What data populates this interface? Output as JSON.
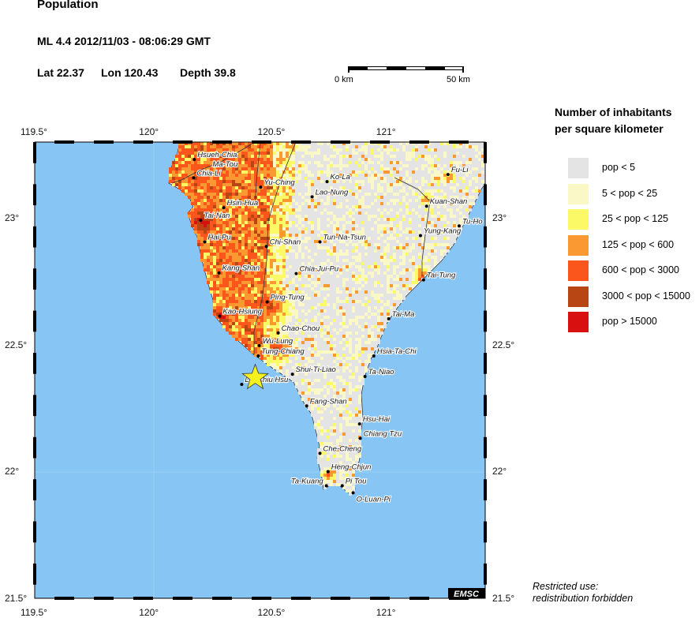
{
  "header": {
    "title": "Population",
    "event_line": "ML 4.4  2012/11/03 - 08:06:29 GMT",
    "lat_label": "Lat 22.37",
    "lon_label": "Lon 120.43",
    "depth_label": "Depth  39.8"
  },
  "scale_bar": {
    "start_label": "0 km",
    "end_label": "50 km"
  },
  "map": {
    "lon_range": [
      119.5,
      121.4
    ],
    "lat_range": [
      21.5,
      23.3
    ],
    "lon_ticks": [
      "119.5°",
      "120°",
      "120.5°",
      "121°"
    ],
    "lon_tick_values": [
      119.5,
      120,
      120.5,
      121
    ],
    "lat_ticks": [
      "23°",
      "22.5°",
      "22°",
      "21.5°"
    ],
    "lat_tick_values": [
      23,
      22.5,
      22,
      21.5
    ],
    "sea_color": "#87c5f5",
    "land_color": "#ffffff",
    "epicenter": {
      "lon": 120.43,
      "lat": 22.37,
      "icon": "star-icon",
      "color": "#f5f020"
    },
    "cities": [
      {
        "name": "Hsueh-Chia",
        "lon": 120.173,
        "lat": 23.231
      },
      {
        "name": "Ma-Tou",
        "lon": 120.25,
        "lat": 23.2,
        "dot": false
      },
      {
        "name": "Chia-Li",
        "lon": 120.17,
        "lat": 23.159
      },
      {
        "name": "Yu-Ching",
        "lon": 120.453,
        "lat": 23.122
      },
      {
        "name": "Ko-La",
        "lon": 120.733,
        "lat": 23.144
      },
      {
        "name": "Lao-Nung",
        "lon": 120.67,
        "lat": 23.084
      },
      {
        "name": "Hsin-Hua",
        "lon": 120.297,
        "lat": 23.041
      },
      {
        "name": "Tai-Nan",
        "lon": 120.2,
        "lat": 22.991
      },
      {
        "name": "Hai-Pu",
        "lon": 120.217,
        "lat": 22.906
      },
      {
        "name": "Tun-Na-Tsun",
        "lon": 120.703,
        "lat": 22.906
      },
      {
        "name": "Chi-Shan",
        "lon": 120.477,
        "lat": 22.888
      },
      {
        "name": "Chia-Jui-Pu",
        "lon": 120.603,
        "lat": 22.781
      },
      {
        "name": "Kang-Shan",
        "lon": 120.277,
        "lat": 22.784
      },
      {
        "name": "Ping-Tung",
        "lon": 120.48,
        "lat": 22.669
      },
      {
        "name": "Kao-Hsiung",
        "lon": 120.28,
        "lat": 22.613
      },
      {
        "name": "Chao-Chou",
        "lon": 120.527,
        "lat": 22.547
      },
      {
        "name": "Wu-Lung",
        "lon": 120.447,
        "lat": 22.497
      },
      {
        "name": "Tung-Chiang",
        "lon": 120.443,
        "lat": 22.456
      },
      {
        "name": "Shui-Ti-Liao",
        "lon": 120.587,
        "lat": 22.384
      },
      {
        "name": "Liu-Chiu Hsu",
        "lon": 120.373,
        "lat": 22.344
      },
      {
        "name": "Fang-Shan",
        "lon": 120.647,
        "lat": 22.259
      },
      {
        "name": "Hsu-Hai",
        "lon": 120.87,
        "lat": 22.188
      },
      {
        "name": "Chiang Tzu",
        "lon": 120.873,
        "lat": 22.131
      },
      {
        "name": "Che-Cheng",
        "lon": 120.703,
        "lat": 22.072
      },
      {
        "name": "Heng-Chjun",
        "lon": 120.737,
        "lat": 22.0
      },
      {
        "name": "Ta-Kuang",
        "lon": 120.73,
        "lat": 21.944
      },
      {
        "name": "Pi Tou",
        "lon": 120.797,
        "lat": 21.944
      },
      {
        "name": "O-Luan-Pi",
        "lon": 120.843,
        "lat": 21.916
      },
      {
        "name": "Tai-Ma",
        "lon": 120.993,
        "lat": 22.603
      },
      {
        "name": "Hsia-Ta-Chi",
        "lon": 120.93,
        "lat": 22.456
      },
      {
        "name": "Ta-Niao",
        "lon": 120.893,
        "lat": 22.375
      },
      {
        "name": "Tai-Tung",
        "lon": 121.14,
        "lat": 22.756
      },
      {
        "name": "Yung-Kang",
        "lon": 121.127,
        "lat": 22.931
      },
      {
        "name": "Kuan-Shan",
        "lon": 121.153,
        "lat": 23.047
      },
      {
        "name": "Tu-Ho",
        "lon": 121.29,
        "lat": 22.969
      },
      {
        "name": "Fu-Li",
        "lon": 121.243,
        "lat": 23.172
      }
    ],
    "watermark": "EMSC"
  },
  "legend": {
    "title_line1": "Number of inhabitants",
    "title_line2": "per square kilometer",
    "items": [
      {
        "label": "pop < 5",
        "color": "#e4e4e4"
      },
      {
        "label": "5 < pop < 25",
        "color": "#fbf8c8"
      },
      {
        "label": "25 < pop < 125",
        "color": "#fbf966"
      },
      {
        "label": "125 < pop < 600",
        "color": "#fa9932"
      },
      {
        "label": "600 < pop < 3000",
        "color": "#fb561b"
      },
      {
        "label": "3000 < pop < 15000",
        "color": "#b84514"
      },
      {
        "label": "pop > 15000",
        "color": "#d81010"
      }
    ]
  },
  "footer": {
    "note_line1": "Restricted use:",
    "note_line2": "redistribution forbidden"
  }
}
